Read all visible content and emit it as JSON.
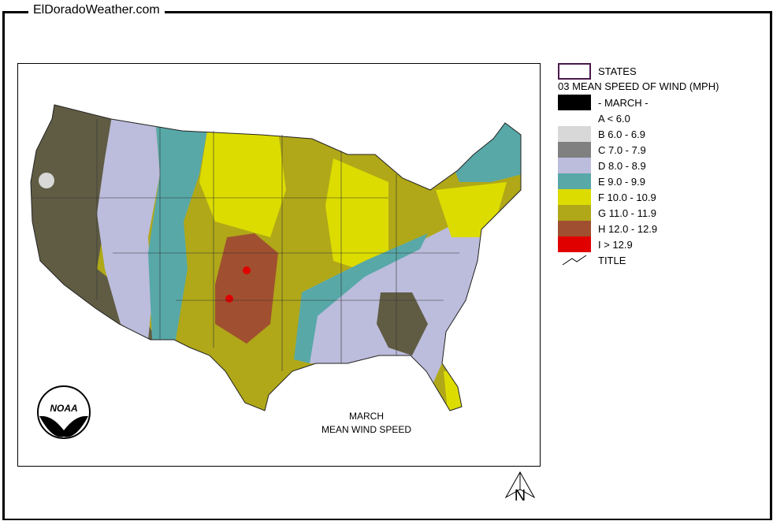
{
  "site_title": "ElDoradoWeather.com",
  "map": {
    "title_line1": "MARCH",
    "title_line2": "MEAN WIND SPEED",
    "logo": "NOAA",
    "north_label": "N"
  },
  "legend": {
    "states_label": "STATES",
    "layer_title": "03 MEAN SPEED OF WIND (MPH)",
    "month_label": "- MARCH -",
    "title_label": "TITLE",
    "classes": [
      {
        "label": "A < 6.0",
        "color": "#ffffff"
      },
      {
        "label": "B 6.0 - 6.9",
        "color": "#d8d8d8"
      },
      {
        "label": "C 7.0 - 7.9",
        "color": "#808080"
      },
      {
        "label": "D 8.0 - 8.9",
        "color": "#bcbcdc"
      },
      {
        "label": "E 9.0 - 9.9",
        "color": "#58a8a8"
      },
      {
        "label": "F 10.0 - 10.9",
        "color": "#dcdc00"
      },
      {
        "label": "G 11.0 - 11.9",
        "color": "#b0a818"
      },
      {
        "label": "H 12.0 - 12.9",
        "color": "#a05030"
      },
      {
        "label": "I > 12.9",
        "color": "#e00000"
      }
    ]
  }
}
